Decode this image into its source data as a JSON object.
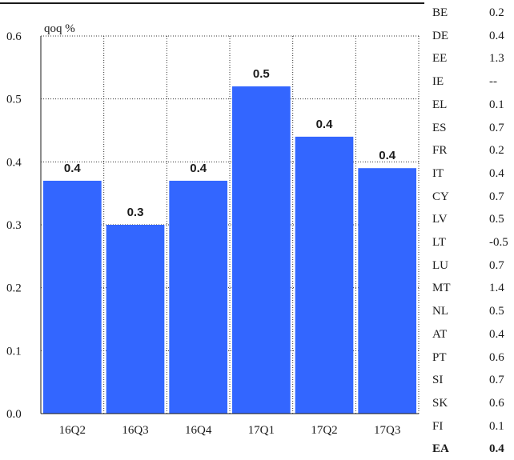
{
  "chart_data": {
    "type": "bar",
    "title": "",
    "unit_label": "qoq %",
    "xlabel": "",
    "ylabel": "",
    "categories": [
      "16Q2",
      "16Q3",
      "16Q4",
      "17Q1",
      "17Q2",
      "17Q3"
    ],
    "values": [
      0.37,
      0.3,
      0.37,
      0.52,
      0.44,
      0.39
    ],
    "data_labels": [
      "0.4",
      "0.3",
      "0.4",
      "0.5",
      "0.4",
      "0.4"
    ],
    "ylim": [
      0.0,
      0.6
    ],
    "yticks": [
      "0.0",
      "0.1",
      "0.2",
      "0.3",
      "0.4",
      "0.5",
      "0.6"
    ],
    "grid": "dotted",
    "bar_color": "#3366ff"
  },
  "country_table": {
    "rows": [
      {
        "code": "BE",
        "value": "0.2"
      },
      {
        "code": "DE",
        "value": "0.4"
      },
      {
        "code": "EE",
        "value": "1.3"
      },
      {
        "code": "IE",
        "value": "--"
      },
      {
        "code": "EL",
        "value": "0.1"
      },
      {
        "code": "ES",
        "value": "0.7"
      },
      {
        "code": "FR",
        "value": "0.2"
      },
      {
        "code": "IT",
        "value": "0.4"
      },
      {
        "code": "CY",
        "value": "0.7"
      },
      {
        "code": "LV",
        "value": "0.5"
      },
      {
        "code": "LT",
        "value": "-0.5"
      },
      {
        "code": "LU",
        "value": "0.7"
      },
      {
        "code": "MT",
        "value": "1.4"
      },
      {
        "code": "NL",
        "value": "0.5"
      },
      {
        "code": "AT",
        "value": "0.4"
      },
      {
        "code": "PT",
        "value": "0.6"
      },
      {
        "code": "SI",
        "value": "0.7"
      },
      {
        "code": "SK",
        "value": "0.6"
      },
      {
        "code": "FI",
        "value": "0.1"
      }
    ],
    "total": {
      "code": "EA",
      "value": "0.4"
    }
  }
}
